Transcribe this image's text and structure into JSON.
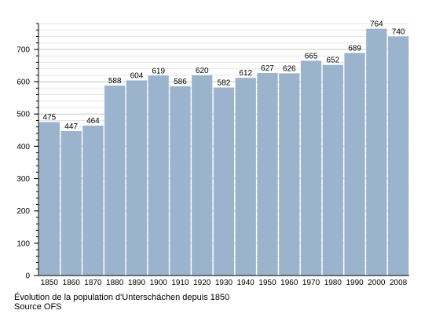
{
  "chart_data": {
    "type": "bar",
    "categories": [
      "1850",
      "1860",
      "1870",
      "1880",
      "1890",
      "1900",
      "1910",
      "1920",
      "1930",
      "1940",
      "1950",
      "1960",
      "1970",
      "1980",
      "1990",
      "2000",
      "2008"
    ],
    "values": [
      475,
      447,
      464,
      588,
      604,
      619,
      586,
      620,
      582,
      612,
      627,
      626,
      665,
      652,
      689,
      764,
      740
    ],
    "ylim": [
      0,
      780
    ],
    "yticks": [
      0,
      100,
      200,
      300,
      400,
      500,
      600,
      700
    ],
    "grid": true,
    "bar_color": "#9bb3cd",
    "title": "",
    "xlabel": "",
    "ylabel": ""
  },
  "caption": {
    "title": "Évolution de la population d'Unterschächen depuis 1850",
    "source": "Source OFS"
  }
}
